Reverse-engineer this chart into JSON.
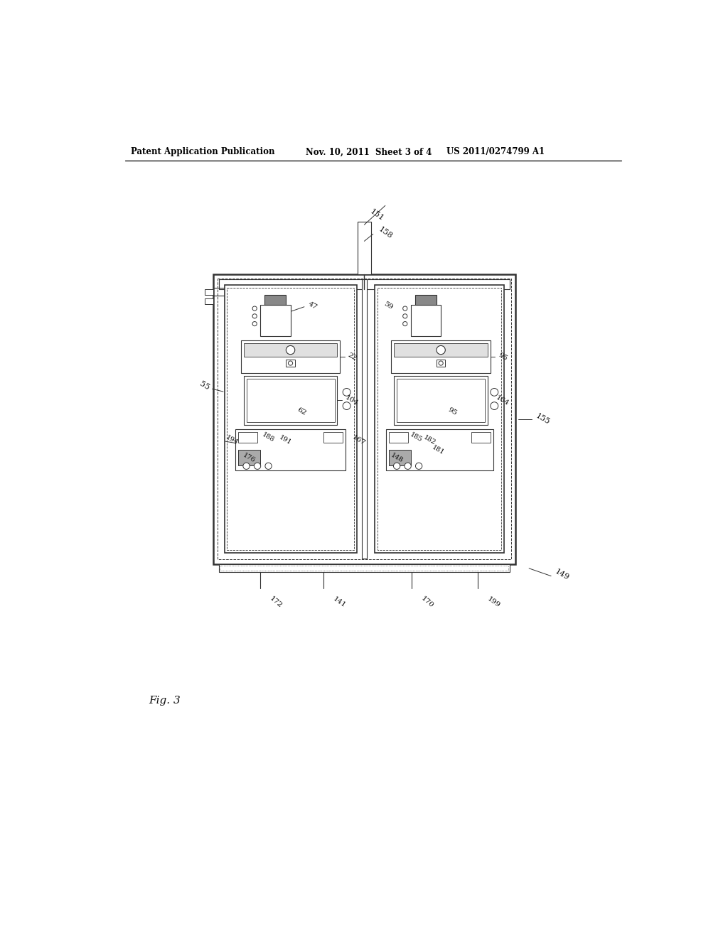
{
  "bg_color": "#ffffff",
  "header_left": "Patent Application Publication",
  "header_mid": "Nov. 10, 2011  Sheet 3 of 4",
  "header_right": "US 2011/0274799 A1",
  "fig_label": "Fig. 3"
}
